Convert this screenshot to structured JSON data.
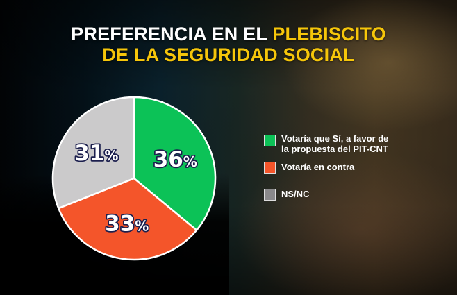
{
  "title": {
    "part1": "PREFERENCIA EN EL ",
    "part1_highlight": "PLEBISCITO",
    "line2": "DE LA SEGURIDAD SOCIAL",
    "highlight_color": "#f6c60a"
  },
  "legend": {
    "items": [
      {
        "label_line1": "Votaría que Sí, a favor de",
        "label_line2": "la propuesta del PIT-CNT",
        "color": "#0cc257"
      },
      {
        "label_line1": "Votaría en contra",
        "label_line2": "",
        "color": "#f4552a"
      },
      {
        "label_line1": "NS/NC",
        "label_line2": "",
        "color": "#cbcacb"
      }
    ]
  },
  "chart_data": {
    "type": "pie",
    "title": "PREFERENCIA EN EL PLEBISCITO DE LA SEGURIDAD SOCIAL",
    "categories": [
      "Votaría que Sí, a favor de la propuesta del PIT-CNT",
      "Votaría en contra",
      "NS/NC"
    ],
    "values": [
      36,
      33,
      31
    ],
    "labels": [
      "36%",
      "33%",
      "31%"
    ],
    "colors": [
      "#0cc257",
      "#f4552a",
      "#cbcacb"
    ],
    "start_angle": "12 o'clock, clockwise",
    "legend_position": "right"
  }
}
